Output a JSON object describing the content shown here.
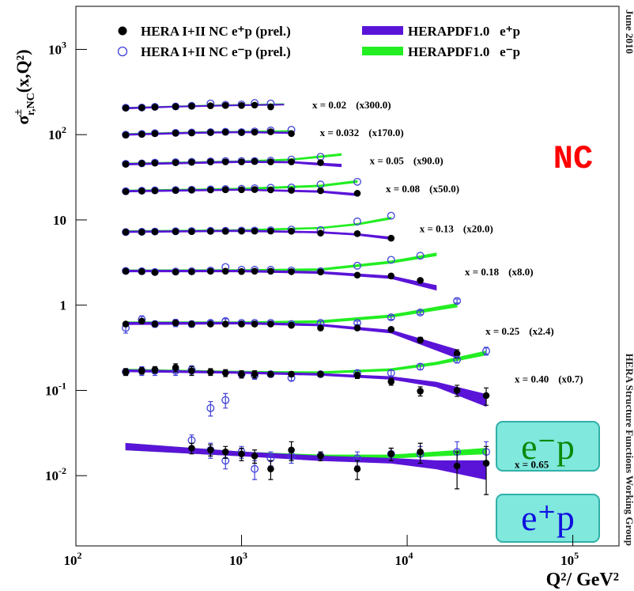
{
  "chart_data": {
    "type": "scatter",
    "log_x": true,
    "log_y": true,
    "xlim": [
      100,
      190000
    ],
    "ylim": [
      0.0015,
      3200
    ],
    "xticks": [
      {
        "value": 100,
        "label": "10",
        "exp": "2"
      },
      {
        "value": 1000,
        "label": "10",
        "exp": "3"
      },
      {
        "value": 10000,
        "label": "10",
        "exp": "4"
      },
      {
        "value": 100000,
        "label": "10",
        "exp": "5"
      }
    ],
    "yticks": [
      {
        "value": 0.01,
        "label": "10",
        "exp": "-2"
      },
      {
        "value": 0.1,
        "label": "10",
        "exp": "-1"
      },
      1,
      10,
      {
        "value": 100,
        "label": "10",
        "exp": "2"
      },
      {
        "value": 1000,
        "label": "10",
        "exp": "3"
      }
    ],
    "x_label": "Q²/ GeV²",
    "y_label": {
      "main": "σ",
      "sup": "±",
      "sub": "r,NC",
      "rest": "(x,Q²)"
    },
    "series": [
      {
        "name": "HERA I+II NC e⁺p (prel.)",
        "marker": "filled",
        "color": "#000000"
      },
      {
        "name": "HERA I+II NC e⁻p (prel.)",
        "marker": "open",
        "color": "#4040d8"
      },
      {
        "name": "HERAPDF1.0   e⁺p",
        "marker": "band",
        "color": "#5a14d8"
      },
      {
        "name": "HERAPDF1.0   e⁻p",
        "marker": "band",
        "color": "#22ee22"
      }
    ],
    "bins": [
      {
        "label": "x = 0.02",
        "factor": "(x300.0)",
        "q2": [
          200,
          250,
          300,
          400,
          500,
          650,
          800,
          1000,
          1200,
          1500
        ],
        "ep": [
          205,
          207,
          210,
          213,
          216,
          218,
          220,
          220,
          222,
          212
        ],
        "em": [
          207,
          208,
          212,
          214,
          218,
          232,
          224,
          226,
          235,
          232
        ],
        "band_q2": [
          200,
          400,
          800,
          1800
        ],
        "ep_lo": [
          200,
          210,
          217,
          222
        ],
        "ep_hi": [
          208,
          216,
          223,
          228
        ],
        "em_lo": [
          201,
          211,
          218,
          224
        ],
        "em_hi": [
          209,
          217,
          225,
          231
        ]
      },
      {
        "label": "x = 0.032",
        "factor": "(x170.0)",
        "q2": [
          200,
          250,
          300,
          400,
          500,
          650,
          800,
          1000,
          1200,
          1500,
          2000
        ],
        "ep": [
          99,
          101,
          103,
          104,
          105,
          106,
          107,
          106,
          107,
          108,
          103
        ],
        "em": [
          100,
          102,
          104,
          105,
          106,
          107,
          108,
          107,
          109,
          112,
          114
        ],
        "band_q2": [
          200,
          500,
          1000,
          2000
        ],
        "ep_lo": [
          98,
          103,
          105,
          103
        ],
        "ep_hi": [
          102,
          107,
          109,
          107
        ],
        "em_lo": [
          99,
          104,
          106,
          108
        ],
        "em_hi": [
          103,
          108,
          110,
          112
        ]
      },
      {
        "label": "x = 0.05",
        "factor": "(x90.0)",
        "q2": [
          200,
          250,
          300,
          400,
          500,
          650,
          800,
          1000,
          1200,
          1500,
          2000,
          3000
        ],
        "ep": [
          45,
          46,
          46.5,
          47,
          47.5,
          48,
          48,
          48,
          48.5,
          48,
          48,
          47
        ],
        "em": [
          45.5,
          46,
          47,
          47.5,
          48,
          48.5,
          49,
          49,
          49,
          49.5,
          51,
          55
        ],
        "band_q2": [
          200,
          1000,
          2000,
          4000
        ],
        "ep_lo": [
          44,
          47,
          46.5,
          42
        ],
        "ep_hi": [
          46,
          49,
          48.5,
          45
        ],
        "em_lo": [
          44.5,
          47.5,
          50,
          57
        ],
        "em_hi": [
          46.5,
          49.5,
          52,
          60
        ]
      },
      {
        "label": "x = 0.08",
        "factor": "(x50.0)",
        "q2": [
          200,
          250,
          300,
          400,
          500,
          650,
          800,
          1000,
          1200,
          1500,
          2000,
          3000,
          5000
        ],
        "ep": [
          21.5,
          21.8,
          22,
          22.2,
          22.4,
          22.5,
          22.6,
          22.6,
          22.7,
          22.5,
          22.2,
          22,
          20.5
        ],
        "em": [
          21.7,
          22,
          22.2,
          22.4,
          22.6,
          22.8,
          23,
          23.2,
          23.5,
          23.8,
          24,
          26,
          28
        ],
        "band_q2": [
          200,
          1000,
          3000,
          5000
        ],
        "ep_lo": [
          21.2,
          22.2,
          21,
          19.2
        ],
        "ep_hi": [
          22.2,
          23,
          22,
          20.4
        ],
        "em_lo": [
          21.4,
          22.6,
          24.5,
          27.5
        ],
        "em_hi": [
          22.4,
          23.6,
          25.7,
          29
        ]
      },
      {
        "label": "x = 0.13",
        "factor": "(x20.0)",
        "q2": [
          200,
          250,
          300,
          400,
          500,
          650,
          800,
          1000,
          1200,
          1500,
          2000,
          3000,
          5000,
          8000
        ],
        "ep": [
          7.2,
          7.2,
          7.25,
          7.3,
          7.3,
          7.35,
          7.35,
          7.4,
          7.4,
          7.4,
          7.35,
          7.0,
          6.9,
          6.1
        ],
        "em": [
          7.2,
          7.25,
          7.3,
          7.35,
          7.4,
          7.45,
          7.45,
          7.5,
          7.5,
          7.55,
          7.7,
          7.6,
          9.6,
          11.2
        ],
        "band_q2": [
          200,
          1000,
          3000,
          5000,
          8000
        ],
        "ep_lo": [
          7.1,
          7.3,
          7.0,
          6.6,
          5.9
        ],
        "ep_hi": [
          7.4,
          7.6,
          7.3,
          6.9,
          6.3
        ],
        "em_lo": [
          7.2,
          7.4,
          7.9,
          8.7,
          10.2
        ],
        "em_hi": [
          7.5,
          7.7,
          8.2,
          9.1,
          10.8
        ]
      },
      {
        "label": "x = 0.18",
        "factor": "(x8.0)",
        "q2": [
          200,
          250,
          300,
          400,
          500,
          650,
          800,
          1000,
          1200,
          1500,
          2000,
          3000,
          5000,
          8000,
          12000
        ],
        "ep": [
          2.5,
          2.48,
          2.42,
          2.45,
          2.47,
          2.5,
          2.5,
          2.48,
          2.5,
          2.5,
          2.47,
          2.45,
          2.25,
          2.2,
          1.95
        ],
        "em": [
          2.52,
          2.5,
          2.45,
          2.48,
          2.5,
          2.55,
          2.8,
          2.6,
          2.6,
          2.6,
          2.55,
          2.5,
          2.9,
          3.4,
          3.8
        ],
        "band_q2": [
          200,
          1000,
          3000,
          8000,
          15000
        ],
        "ep_lo": [
          2.45,
          2.45,
          2.35,
          2.05,
          1.5
        ],
        "ep_hi": [
          2.58,
          2.58,
          2.48,
          2.2,
          1.7
        ],
        "em_lo": [
          2.48,
          2.5,
          2.55,
          3.1,
          3.8
        ],
        "em_hi": [
          2.6,
          2.62,
          2.68,
          3.3,
          4.1
        ]
      },
      {
        "label": "x = 0.25",
        "factor": "(x2.4)",
        "q2": [
          200,
          250,
          300,
          400,
          500,
          650,
          800,
          1000,
          1200,
          1500,
          2000,
          3000,
          5000,
          8000,
          12000,
          20000
        ],
        "ep": [
          0.6,
          0.65,
          0.6,
          0.62,
          0.6,
          0.6,
          0.6,
          0.6,
          0.6,
          0.6,
          0.58,
          0.54,
          0.54,
          0.52,
          0.39,
          0.27
        ],
        "em": [
          0.54,
          0.68,
          0.6,
          0.62,
          0.6,
          0.62,
          0.65,
          0.62,
          0.62,
          0.62,
          0.6,
          0.62,
          0.62,
          0.72,
          0.82,
          1.12
        ],
        "ep_err": [
          0.03,
          0.04,
          0.03,
          0.03,
          0.03,
          0.03,
          0.02,
          0.02,
          0.02,
          0.02,
          0.02,
          0.02,
          0.02,
          0.03,
          0.03,
          0.03
        ],
        "em_err": [
          0.07,
          0.07,
          0.05,
          0.06,
          0.05,
          0.04,
          0.04,
          0.03,
          0.03,
          0.03,
          0.03,
          0.03,
          0.03,
          0.04,
          0.04,
          0.06
        ],
        "band_q2": [
          200,
          1000,
          3000,
          8000,
          20000
        ],
        "ep_lo": [
          0.59,
          0.6,
          0.57,
          0.47,
          0.24
        ],
        "ep_hi": [
          0.63,
          0.63,
          0.6,
          0.51,
          0.3
        ],
        "em_lo": [
          0.6,
          0.61,
          0.62,
          0.72,
          0.95
        ],
        "em_hi": [
          0.64,
          0.64,
          0.66,
          0.77,
          1.05
        ]
      },
      {
        "label": "x = 0.40",
        "factor": "(x0.7)",
        "q2": [
          200,
          250,
          300,
          400,
          500,
          650,
          800,
          1000,
          1200,
          1500,
          2000,
          3000,
          5000,
          8000,
          12000,
          20000,
          30000
        ],
        "ep": [
          0.165,
          0.17,
          0.175,
          0.185,
          0.17,
          0.165,
          0.16,
          0.155,
          0.155,
          0.155,
          0.155,
          0.155,
          0.15,
          0.127,
          0.098,
          0.1,
          0.087
        ],
        "em": [
          0.165,
          0.17,
          0.17,
          0.17,
          0.175,
          0.062,
          0.077,
          0.155,
          0.15,
          0.155,
          0.14,
          0.155,
          0.16,
          0.16,
          0.19,
          0.23,
          0.29
        ],
        "ep_err": [
          0.015,
          0.015,
          0.015,
          0.02,
          0.02,
          0.015,
          0.015,
          0.015,
          0.015,
          0.01,
          0.01,
          0.01,
          0.012,
          0.012,
          0.012,
          0.015,
          0.02
        ],
        "em_err": [
          0.015,
          0.02,
          0.02,
          0.02,
          0.02,
          0.012,
          0.015,
          0.015,
          0.015,
          0.01,
          0.01,
          0.01,
          0.012,
          0.012,
          0.015,
          0.02,
          0.03
        ],
        "band_q2": [
          200,
          1000,
          3000,
          8000,
          15000,
          30000
        ],
        "ep_lo": [
          0.165,
          0.158,
          0.15,
          0.135,
          0.11,
          0.065
        ],
        "ep_hi": [
          0.175,
          0.166,
          0.158,
          0.145,
          0.125,
          0.09
        ],
        "em_lo": [
          0.168,
          0.16,
          0.158,
          0.17,
          0.2,
          0.26
        ],
        "em_hi": [
          0.178,
          0.168,
          0.166,
          0.18,
          0.215,
          0.29
        ]
      },
      {
        "label": "x = 0.65",
        "q2": [
          500,
          650,
          800,
          1000,
          1200,
          1500,
          2000,
          3000,
          5000,
          8000,
          12000,
          20000,
          30000
        ],
        "ep": [
          0.021,
          0.02,
          0.019,
          0.018,
          0.017,
          0.012,
          0.02,
          0.017,
          0.012,
          0.018,
          0.019,
          0.013,
          0.014
        ],
        "em": [
          0.026,
          0.02,
          0.015,
          0.019,
          0.012,
          0.016,
          0.017,
          0.017,
          0.016,
          0.018,
          0.018,
          0.019,
          0.019
        ],
        "ep_err": [
          0.003,
          0.003,
          0.003,
          0.003,
          0.003,
          0.003,
          0.005,
          0.002,
          0.003,
          0.003,
          0.005,
          0.006,
          0.008
        ],
        "em_err": [
          0.004,
          0.004,
          0.003,
          0.003,
          0.003,
          0.003,
          0.003,
          0.002,
          0.003,
          0.003,
          0.004,
          0.006,
          0.006
        ],
        "band_q2": [
          200,
          1000,
          3000,
          8000,
          15000,
          30000
        ],
        "ep_lo": [
          0.02,
          0.017,
          0.015,
          0.014,
          0.012,
          0.009
        ],
        "ep_hi": [
          0.024,
          0.019,
          0.017,
          0.016,
          0.015,
          0.015
        ],
        "em_lo": [
          0.02,
          0.017,
          0.016,
          0.016,
          0.017,
          0.018
        ],
        "em_hi": [
          0.024,
          0.019,
          0.0175,
          0.0175,
          0.019,
          0.021
        ]
      }
    ],
    "annotations": {
      "process": "NC",
      "date": "June 2010",
      "group": "HERA Structure Functions Working Group",
      "box_em": "e⁻p",
      "box_ep": "e⁺p"
    }
  }
}
